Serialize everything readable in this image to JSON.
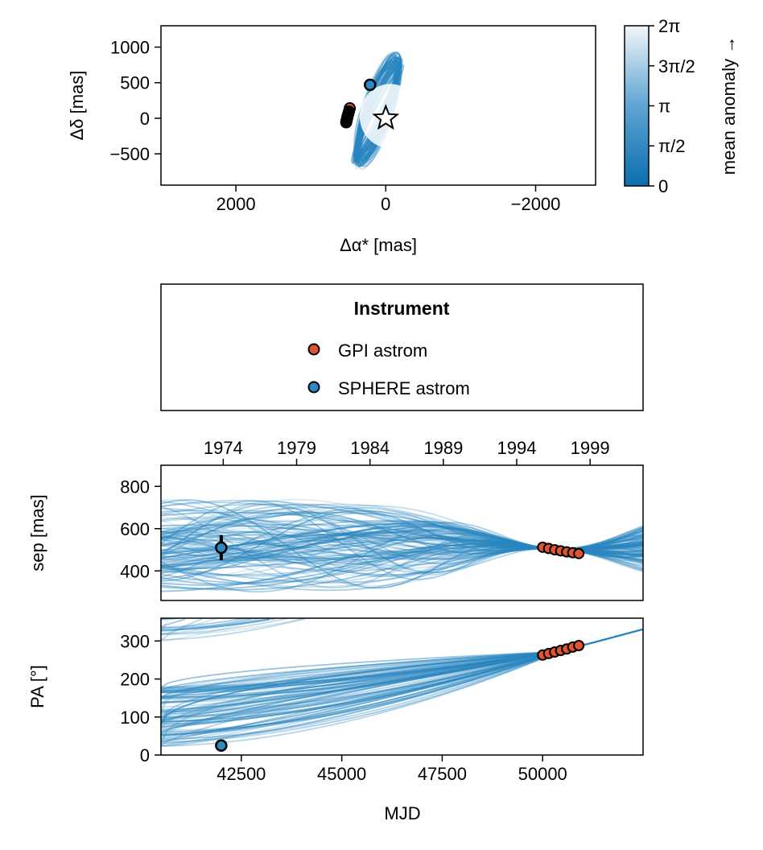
{
  "colors": {
    "orbit": "#2a86c0",
    "gpi": "#e0552f",
    "sphere": "#2b8ac4",
    "cbar_low": "#0b6eae",
    "cbar_high": "#f2f6fa"
  },
  "chart_data": [
    {
      "id": "sky",
      "type": "line",
      "title": "",
      "xlabel": "Δα* [mas]",
      "ylabel": "Δδ [mas]",
      "xlim": [
        3000,
        -2800
      ],
      "ylim": [
        -940,
        1300
      ],
      "xticks": [
        2000,
        0,
        -2000
      ],
      "xtick_labels": [
        "2000",
        "0",
        "−2000"
      ],
      "yticks": [
        1000,
        500,
        0,
        -500
      ],
      "ytick_labels": [
        "1000",
        "500",
        "0",
        "−500"
      ],
      "star": {
        "x": 0,
        "y": 0
      },
      "gpi_points": [
        {
          "x": 480,
          "y": 140
        },
        {
          "x": 492,
          "y": 95
        },
        {
          "x": 500,
          "y": 62
        },
        {
          "x": 510,
          "y": 28
        },
        {
          "x": 516,
          "y": 0
        },
        {
          "x": 522,
          "y": -28
        },
        {
          "x": 528,
          "y": -58
        }
      ],
      "sphere_points": [
        {
          "x": 210,
          "y": 470
        }
      ]
    },
    {
      "id": "colorbar",
      "type": "heatmap",
      "label": "mean anomaly →",
      "range": [
        0,
        6.283
      ],
      "ticks": [
        0,
        1.571,
        3.1416,
        4.712,
        6.283
      ],
      "tick_labels": [
        "0",
        "π/2",
        "π",
        "3π/2",
        "2π"
      ]
    },
    {
      "id": "sep",
      "type": "scatter",
      "xlabel": "",
      "ylabel": "sep [mas]",
      "xlim": [
        40500,
        52500
      ],
      "ylim": [
        260,
        900
      ],
      "yticks": [
        400,
        600,
        800
      ],
      "ytick_labels": [
        "400",
        "600",
        "800"
      ],
      "top_axis_ticks": [
        1974,
        1979,
        1984,
        1989,
        1994,
        1999
      ],
      "top_axis_labels": [
        "1974",
        "1979",
        "1984",
        "1989",
        "1994",
        "1999"
      ],
      "gpi_points": [
        {
          "x": 50000,
          "y": 512
        },
        {
          "x": 50150,
          "y": 506
        },
        {
          "x": 50300,
          "y": 500
        },
        {
          "x": 50450,
          "y": 495
        },
        {
          "x": 50600,
          "y": 490
        },
        {
          "x": 50750,
          "y": 486
        },
        {
          "x": 50900,
          "y": 482
        }
      ],
      "sphere_points": [
        {
          "x": 42000,
          "y": 510,
          "err": 60
        }
      ]
    },
    {
      "id": "pa",
      "type": "scatter",
      "xlabel": "MJD",
      "ylabel": "PA [°]",
      "xlim": [
        40500,
        52500
      ],
      "ylim": [
        0,
        360
      ],
      "xticks": [
        42500,
        45000,
        47500,
        50000
      ],
      "xtick_labels": [
        "42500",
        "45000",
        "47500",
        "50000"
      ],
      "yticks": [
        0,
        100,
        200,
        300
      ],
      "ytick_labels": [
        "0",
        "100",
        "200",
        "300"
      ],
      "gpi_points": [
        {
          "x": 50000,
          "y": 263
        },
        {
          "x": 50150,
          "y": 267
        },
        {
          "x": 50300,
          "y": 271
        },
        {
          "x": 50450,
          "y": 275
        },
        {
          "x": 50600,
          "y": 279
        },
        {
          "x": 50750,
          "y": 284
        },
        {
          "x": 50900,
          "y": 288
        }
      ],
      "sphere_points": [
        {
          "x": 42000,
          "y": 25
        }
      ]
    }
  ],
  "legend": {
    "title": "Instrument",
    "items": [
      {
        "label": "GPI astrom",
        "color": "#e0552f"
      },
      {
        "label": "SPHERE astrom",
        "color": "#2b8ac4"
      }
    ]
  }
}
